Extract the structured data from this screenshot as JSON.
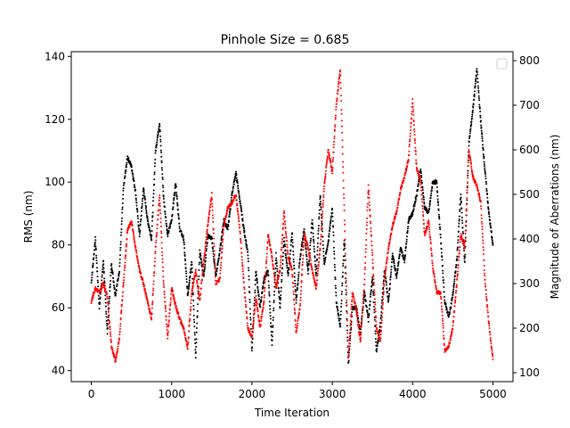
{
  "chart_data": {
    "type": "scatter",
    "title": "Pinhole Size = 0.685",
    "xlabel": "Time Iteration",
    "ylabel": "RMS (nm)",
    "ylabel_right": "Magnitude of Aberrations (nm)",
    "xlim": [
      -250,
      5250
    ],
    "ylim": [
      36.5,
      141.5
    ],
    "ylim_right": [
      80,
      820
    ],
    "x_ticks": [
      0,
      1000,
      2000,
      3000,
      4000,
      5000
    ],
    "y_ticks": [
      40,
      60,
      80,
      100,
      120,
      140
    ],
    "y_ticks_right": [
      100,
      200,
      300,
      400,
      500,
      600,
      700,
      800
    ],
    "grid": false,
    "legend": "top-right (empty)",
    "series": [
      {
        "axis": "left",
        "color": "#000000",
        "x": [
          0,
          50,
          100,
          150,
          200,
          250,
          300,
          350,
          400,
          450,
          500,
          550,
          600,
          650,
          700,
          750,
          800,
          850,
          900,
          950,
          1000,
          1050,
          1100,
          1150,
          1200,
          1250,
          1300,
          1350,
          1400,
          1450,
          1500,
          1550,
          1600,
          1650,
          1700,
          1750,
          1800,
          1850,
          1900,
          1950,
          2000,
          2050,
          2100,
          2150,
          2200,
          2250,
          2300,
          2350,
          2400,
          2450,
          2500,
          2550,
          2600,
          2650,
          2700,
          2750,
          2800,
          2850,
          2900,
          2950,
          3000,
          3050,
          3100,
          3150,
          3200,
          3250,
          3300,
          3350,
          3400,
          3450,
          3500,
          3550,
          3600,
          3650,
          3700,
          3750,
          3800,
          3850,
          3900,
          3950,
          4000,
          4050,
          4100,
          4150,
          4200,
          4250,
          4300,
          4350,
          4400,
          4450,
          4500,
          4550,
          4600,
          4650,
          4700,
          4750,
          4800,
          4850,
          4900,
          4950,
          5000
        ],
        "values": [
          68,
          82,
          60,
          75,
          52,
          74,
          64,
          72,
          98,
          108,
          105,
          97,
          83,
          98,
          88,
          82,
          110,
          119,
          95,
          83,
          88,
          100,
          85,
          82,
          64,
          75,
          44,
          78,
          70,
          83,
          82,
          70,
          78,
          88,
          85,
          96,
          103,
          94,
          85,
          77,
          46,
          72,
          60,
          69,
          72,
          48,
          77,
          60,
          82,
          70,
          84,
          62,
          76,
          85,
          71,
          88,
          70,
          96,
          74,
          81,
          92,
          62,
          54,
          82,
          42,
          60,
          60,
          52,
          65,
          56,
          70,
          46,
          55,
          72,
          62,
          77,
          70,
          79,
          75,
          88,
          90,
          96,
          104,
          92,
          90,
          100,
          100,
          82,
          62,
          57,
          64,
          75,
          96,
          74,
          112,
          123,
          136,
          119,
          104,
          90,
          80
        ]
      },
      {
        "axis": "right",
        "color": "#ff0000",
        "x": [
          0,
          50,
          100,
          150,
          200,
          250,
          300,
          350,
          400,
          450,
          500,
          550,
          600,
          650,
          700,
          750,
          800,
          850,
          900,
          950,
          1000,
          1050,
          1100,
          1150,
          1200,
          1250,
          1300,
          1350,
          1400,
          1450,
          1500,
          1550,
          1600,
          1650,
          1700,
          1750,
          1800,
          1850,
          1900,
          1950,
          2000,
          2050,
          2100,
          2150,
          2200,
          2250,
          2300,
          2350,
          2400,
          2450,
          2500,
          2550,
          2600,
          2650,
          2700,
          2750,
          2800,
          2850,
          2900,
          2950,
          3000,
          3050,
          3100,
          3150,
          3200,
          3250,
          3300,
          3350,
          3400,
          3450,
          3500,
          3550,
          3600,
          3650,
          3700,
          3750,
          3800,
          3850,
          3900,
          3950,
          4000,
          4050,
          4100,
          4150,
          4200,
          4250,
          4300,
          4350,
          4400,
          4450,
          4500,
          4550,
          4600,
          4650,
          4700,
          4750,
          4800,
          4850,
          4900,
          4950,
          5000
        ],
        "values": [
          260,
          290,
          280,
          300,
          270,
          160,
          125,
          180,
          300,
          420,
          440,
          380,
          330,
          300,
          260,
          220,
          380,
          500,
          300,
          180,
          290,
          250,
          220,
          200,
          155,
          280,
          330,
          260,
          350,
          430,
          500,
          300,
          310,
          430,
          470,
          480,
          500,
          420,
          300,
          200,
          180,
          270,
          200,
          260,
          410,
          360,
          290,
          330,
          460,
          360,
          330,
          190,
          250,
          410,
          380,
          330,
          290,
          380,
          520,
          600,
          550,
          700,
          780,
          460,
          130,
          280,
          240,
          170,
          300,
          520,
          360,
          200,
          170,
          310,
          380,
          430,
          460,
          510,
          540,
          580,
          710,
          560,
          530,
          410,
          440,
          340,
          280,
          280,
          150,
          160,
          200,
          300,
          410,
          380,
          600,
          540,
          520,
          480,
          310,
          210,
          130
        ]
      }
    ]
  }
}
